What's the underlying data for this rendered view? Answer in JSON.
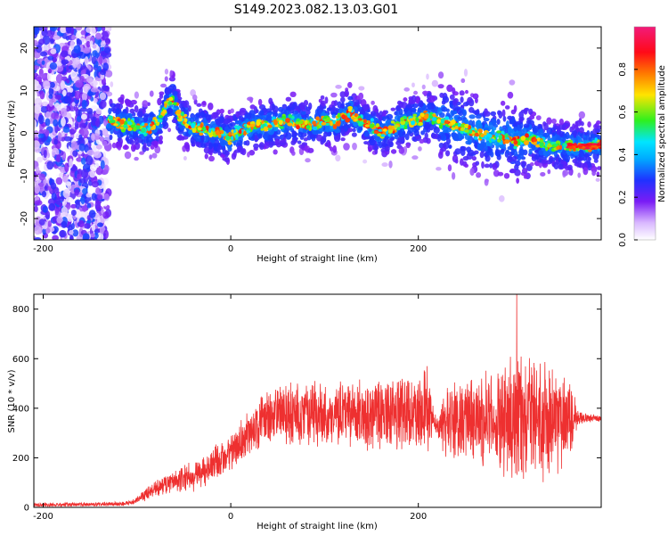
{
  "title": "S149.2023.082.13.03.G01",
  "chart_data": [
    {
      "type": "heatmap",
      "xlabel": "Height of straight line (km)",
      "ylabel": "Frequency (Hz)",
      "xlim": [
        -210,
        395
      ],
      "ylim": [
        -25,
        25
      ],
      "x_ticks": [
        -200,
        0,
        200
      ],
      "y_ticks": [
        -20,
        -10,
        0,
        10,
        20
      ],
      "grid": false,
      "colorbar": {
        "label": "Normalized spectral amplitude",
        "range": [
          0,
          1
        ],
        "ticks": [
          0.0,
          0.2,
          0.4,
          0.6,
          0.8
        ],
        "colormap": [
          "#ffffff",
          "#7a1cf5",
          "#1f32ff",
          "#00e5ff",
          "#2ef01e",
          "#ffe400",
          "#ff7a00",
          "#ff0a18",
          "#f21b7a"
        ]
      },
      "ridge": {
        "x": [
          -130,
          -110,
          -90,
          -75,
          -68,
          -62,
          -55,
          -45,
          -30,
          -15,
          0,
          15,
          30,
          45,
          60,
          75,
          90,
          100,
          110,
          120,
          128,
          135,
          145,
          155,
          160,
          170,
          180,
          190,
          200,
          210,
          220,
          235,
          250,
          265,
          280,
          295,
          310,
          320,
          330,
          340,
          350,
          360,
          370,
          380,
          395
        ],
        "y": [
          3,
          2,
          1,
          3,
          7,
          8,
          4,
          2,
          1,
          0,
          -1,
          1,
          2,
          2,
          3,
          2,
          2,
          3,
          2,
          4,
          5,
          3,
          2,
          1,
          0,
          1,
          2,
          3,
          3,
          4,
          3,
          2,
          1,
          0,
          -1,
          -1,
          -2,
          -1,
          -2,
          -3,
          -3,
          -3,
          -3,
          -3,
          -3
        ]
      }
    },
    {
      "type": "line",
      "xlabel": "Height of straight line (km)",
      "ylabel": "SNR (10 * v/v)",
      "xlim": [
        -210,
        395
      ],
      "ylim": [
        0,
        860
      ],
      "x_ticks": [
        -200,
        0,
        200
      ],
      "y_ticks": [
        0,
        200,
        400,
        600,
        800
      ],
      "grid": false,
      "series": [
        {
          "color": "#ee3030",
          "envelope": {
            "x": [
              -210,
              -150,
              -110,
              -100,
              -90,
              -70,
              -50,
              -30,
              -10,
              0,
              10,
              20,
              30,
              40,
              60,
              80,
              100,
              120,
              140,
              160,
              180,
              200,
              210,
              215,
              220,
              230,
              240,
              260,
              280,
              300,
              320,
              340,
              360,
              370,
              380,
              395
            ],
            "center": [
              10,
              12,
              15,
              30,
              60,
              90,
              110,
              150,
              200,
              220,
              260,
              300,
              340,
              370,
              380,
              375,
              380,
              380,
              375,
              380,
              380,
              380,
              380,
              370,
              330,
              340,
              350,
              360,
              360,
              350,
              350,
              350,
              360,
              360,
              360,
              360
            ],
            "amplitude": [
              8,
              8,
              10,
              15,
              30,
              40,
              55,
              70,
              80,
              80,
              85,
              90,
              100,
              110,
              130,
              130,
              130,
              140,
              140,
              150,
              150,
              170,
              180,
              60,
              40,
              150,
              180,
              200,
              230,
              260,
              250,
              240,
              200,
              40,
              15,
              15
            ],
            "peak": {
              "x": 305,
              "y": 860
            }
          }
        }
      ]
    }
  ]
}
